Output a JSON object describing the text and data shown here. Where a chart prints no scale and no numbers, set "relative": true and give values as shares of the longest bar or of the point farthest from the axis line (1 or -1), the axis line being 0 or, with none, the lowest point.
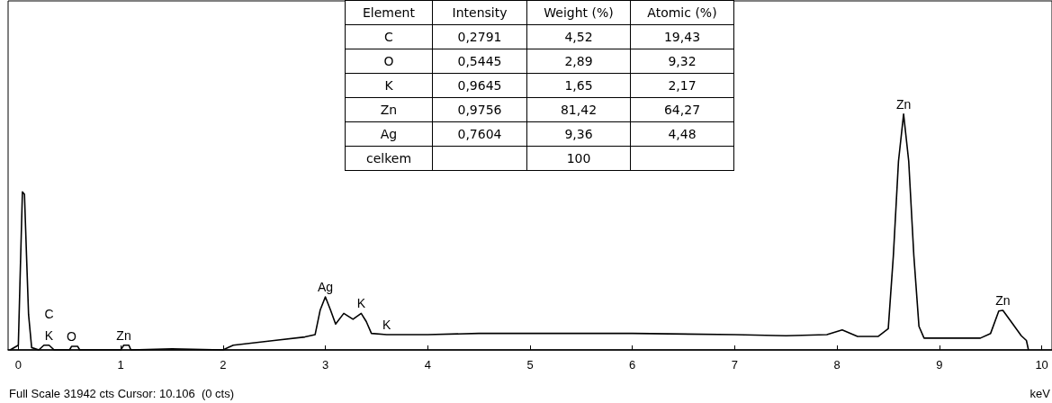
{
  "chart_data": [
    {
      "type": "line",
      "relative": true,
      "xlabel": "keV",
      "xlim": [
        -0.1,
        10.1
      ],
      "xticks": [
        0,
        1,
        2,
        3,
        4,
        5,
        6,
        7,
        8,
        9,
        10
      ],
      "marker": "none",
      "grid": false,
      "x": [
        -0.08,
        0,
        0.02,
        0.04,
        0.06,
        0.08,
        0.1,
        0.13,
        0.2,
        0.25,
        0.3,
        0.35,
        0.5,
        0.52,
        0.58,
        0.6,
        1.0,
        1.03,
        1.08,
        1.1,
        1.5,
        2.0,
        2.1,
        2.5,
        2.8,
        2.9,
        2.95,
        3.0,
        3.05,
        3.1,
        3.18,
        3.27,
        3.35,
        3.4,
        3.45,
        3.6,
        4.0,
        4.5,
        5.0,
        6.0,
        7.0,
        7.5,
        7.9,
        8.05,
        8.2,
        8.4,
        8.5,
        8.55,
        8.6,
        8.65,
        8.7,
        8.75,
        8.8,
        8.85,
        9.4,
        9.5,
        9.58,
        9.62,
        9.7,
        9.8,
        9.85,
        9.87
      ],
      "series": [
        {
          "color": "#000000",
          "values": [
            0,
            0.02,
            0.35,
            0.67,
            0.66,
            0.4,
            0.15,
            0.01,
            0,
            0.02,
            0.02,
            0,
            0,
            0.015,
            0.015,
            0,
            0,
            0.02,
            0.02,
            0,
            0.005,
            0,
            0.02,
            0.04,
            0.055,
            0.065,
            0.17,
            0.225,
            0.17,
            0.11,
            0.155,
            0.13,
            0.155,
            0.12,
            0.07,
            0.065,
            0.065,
            0.07,
            0.07,
            0.07,
            0.065,
            0.06,
            0.065,
            0.085,
            0.057,
            0.057,
            0.09,
            0.4,
            0.8,
            1.0,
            0.8,
            0.4,
            0.1,
            0.05,
            0.05,
            0.07,
            0.165,
            0.168,
            0.12,
            0.06,
            0.04,
            0
          ]
        }
      ],
      "annotations": [
        {
          "text": "C",
          "x": 0.3,
          "y": 0.02
        },
        {
          "text": "K",
          "x": 0.3,
          "y": 0.02
        },
        {
          "text": "O",
          "x": 0.52,
          "y": 0.015
        },
        {
          "text": "Zn",
          "x": 1.03,
          "y": 0.02
        },
        {
          "text": "Ag",
          "x": 3.0,
          "y": 0.225
        },
        {
          "text": "K",
          "x": 3.35,
          "y": 0.155
        },
        {
          "text": "K",
          "x": 3.6,
          "y": 0.065
        },
        {
          "text": "Zn",
          "x": 8.65,
          "y": 1.0
        },
        {
          "text": "Zn",
          "x": 9.62,
          "y": 0.168
        },
        "Full Scale 31942 cts Cursor: 10.106  (0 cts)"
      ]
    },
    {
      "type": "other",
      "categories": [
        "Element",
        "Intensity",
        "Weight (%)",
        "Atomic (%)"
      ],
      "annotations": [
        "C",
        "0,2791",
        "4,52",
        "19,43",
        "O",
        "0,5445",
        "2,89",
        "9,32",
        "K",
        "0,9645",
        "1,65",
        "2,17",
        "Zn",
        "0,9756",
        "81,42",
        "64,27",
        "Ag",
        "0,7604",
        "9,36",
        "4,48",
        "celkem",
        null,
        "100",
        null
      ]
    }
  ]
}
